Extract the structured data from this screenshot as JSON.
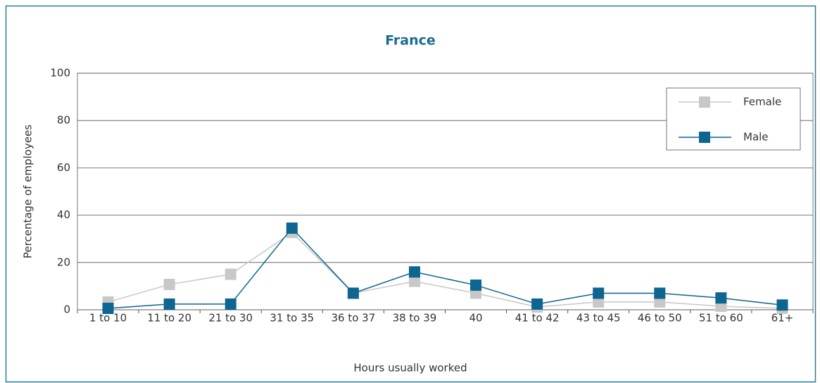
{
  "chart_data": {
    "type": "line",
    "title": "France",
    "x_label": "Hours usually worked",
    "y_label": "Percentage of employees",
    "categories": [
      "1 to 10",
      "11 to 20",
      "21 to 30",
      "31 to 35",
      "36 to 37",
      "38 to 39",
      "40",
      "41 to 42",
      "43 to 45",
      "46 to 50",
      "51 to 60",
      "61+"
    ],
    "series": [
      {
        "name": "Female",
        "color": "#c8c8c8",
        "values": [
          3.3,
          10.7,
          15,
          32.7,
          7,
          12,
          7,
          1.2,
          3.3,
          3.3,
          1.5,
          0.6
        ]
      },
      {
        "name": "Male",
        "color": "#0d6590",
        "values": [
          0.6,
          2.4,
          2.4,
          34.5,
          7,
          16,
          10.4,
          2.4,
          7,
          7,
          5,
          2
        ]
      }
    ],
    "ylim": [
      0,
      100
    ],
    "yticks": [
      0,
      20,
      40,
      60,
      80,
      100
    ],
    "grid": true,
    "legend": "top-right"
  }
}
